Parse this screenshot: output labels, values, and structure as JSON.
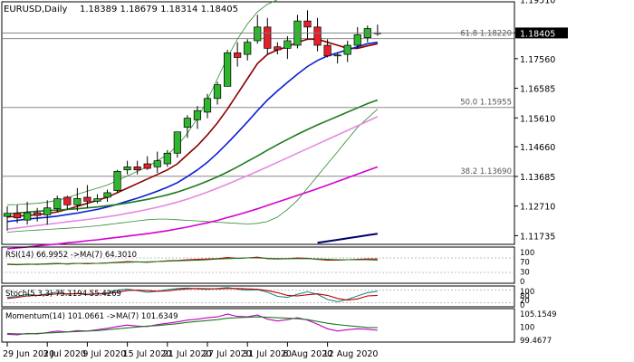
{
  "header": {
    "symbol": "EURUSD,Daily",
    "ohlc": "1.18389 1.18679 1.18314 1.18405"
  },
  "chart_data": {
    "type": "candlestick",
    "symbol": "EURUSD",
    "timeframe": "Daily",
    "current_price": 1.18405,
    "ylim": [
      1.1145,
      1.1943
    ],
    "price_ticks": [
      "1.19510",
      "1.18405",
      "1.17560",
      "1.16585",
      "1.15610",
      "1.14660",
      "1.13685",
      "1.12710",
      "1.11735"
    ],
    "date_labels": [
      "29 Jun 2020",
      "3 Jul 2020",
      "9 Jul 2020",
      "15 Jul 2020",
      "21 Jul 2020",
      "27 Jul 2020",
      "31 Jul 2020",
      "6 Aug 2020",
      "12 Aug 2020"
    ],
    "date_label_index": [
      0,
      4,
      8,
      12,
      16,
      20,
      24,
      28,
      32
    ],
    "candles": [
      {
        "o": 1.1237,
        "h": 1.127,
        "l": 1.119,
        "c": 1.1247
      },
      {
        "o": 1.1247,
        "h": 1.1275,
        "l": 1.1215,
        "c": 1.1232
      },
      {
        "o": 1.1225,
        "h": 1.1285,
        "l": 1.121,
        "c": 1.1249
      },
      {
        "o": 1.1249,
        "h": 1.1265,
        "l": 1.122,
        "c": 1.124
      },
      {
        "o": 1.1242,
        "h": 1.129,
        "l": 1.121,
        "c": 1.1265
      },
      {
        "o": 1.1262,
        "h": 1.1305,
        "l": 1.125,
        "c": 1.1295
      },
      {
        "o": 1.13,
        "h": 1.1305,
        "l": 1.126,
        "c": 1.1275
      },
      {
        "o": 1.1275,
        "h": 1.133,
        "l": 1.1255,
        "c": 1.1296
      },
      {
        "o": 1.13,
        "h": 1.134,
        "l": 1.1265,
        "c": 1.1287
      },
      {
        "o": 1.1287,
        "h": 1.131,
        "l": 1.128,
        "c": 1.1295
      },
      {
        "o": 1.13,
        "h": 1.1325,
        "l": 1.1285,
        "c": 1.1315
      },
      {
        "o": 1.1322,
        "h": 1.139,
        "l": 1.1315,
        "c": 1.1385
      },
      {
        "o": 1.139,
        "h": 1.142,
        "l": 1.1375,
        "c": 1.14
      },
      {
        "o": 1.14,
        "h": 1.142,
        "l": 1.1375,
        "c": 1.139
      },
      {
        "o": 1.141,
        "h": 1.1435,
        "l": 1.139,
        "c": 1.1395
      },
      {
        "o": 1.14,
        "h": 1.145,
        "l": 1.138,
        "c": 1.142
      },
      {
        "o": 1.141,
        "h": 1.1455,
        "l": 1.14,
        "c": 1.1445
      },
      {
        "o": 1.1445,
        "h": 1.151,
        "l": 1.143,
        "c": 1.1515
      },
      {
        "o": 1.153,
        "h": 1.157,
        "l": 1.1495,
        "c": 1.156
      },
      {
        "o": 1.1555,
        "h": 1.16,
        "l": 1.1525,
        "c": 1.1585
      },
      {
        "o": 1.158,
        "h": 1.164,
        "l": 1.156,
        "c": 1.1625
      },
      {
        "o": 1.1625,
        "h": 1.168,
        "l": 1.1605,
        "c": 1.167
      },
      {
        "o": 1.1665,
        "h": 1.1785,
        "l": 1.1665,
        "c": 1.1775
      },
      {
        "o": 1.1775,
        "h": 1.181,
        "l": 1.173,
        "c": 1.176
      },
      {
        "o": 1.177,
        "h": 1.182,
        "l": 1.175,
        "c": 1.181
      },
      {
        "o": 1.1815,
        "h": 1.19,
        "l": 1.1805,
        "c": 1.186
      },
      {
        "o": 1.186,
        "h": 1.189,
        "l": 1.177,
        "c": 1.179
      },
      {
        "o": 1.1795,
        "h": 1.181,
        "l": 1.177,
        "c": 1.1785
      },
      {
        "o": 1.179,
        "h": 1.183,
        "l": 1.1755,
        "c": 1.1815
      },
      {
        "o": 1.18,
        "h": 1.19,
        "l": 1.179,
        "c": 1.188
      },
      {
        "o": 1.188,
        "h": 1.1915,
        "l": 1.182,
        "c": 1.186
      },
      {
        "o": 1.186,
        "h": 1.189,
        "l": 1.178,
        "c": 1.18
      },
      {
        "o": 1.18,
        "h": 1.182,
        "l": 1.176,
        "c": 1.1765
      },
      {
        "o": 1.1765,
        "h": 1.1775,
        "l": 1.174,
        "c": 1.1768
      },
      {
        "o": 1.177,
        "h": 1.1815,
        "l": 1.1745,
        "c": 1.18
      },
      {
        "o": 1.18,
        "h": 1.186,
        "l": 1.179,
        "c": 1.1835
      },
      {
        "o": 1.1825,
        "h": 1.1865,
        "l": 1.181,
        "c": 1.1855
      },
      {
        "o": 1.1839,
        "h": 1.1868,
        "l": 1.1831,
        "c": 1.1841
      }
    ],
    "moving_averages": [
      {
        "name": "red",
        "color": "#8b0000",
        "values": [
          1.1235,
          1.1238,
          1.124,
          1.1243,
          1.1246,
          1.1252,
          1.126,
          1.127,
          1.128,
          1.129,
          1.13,
          1.1315,
          1.133,
          1.1345,
          1.136,
          1.1375,
          1.139,
          1.141,
          1.144,
          1.147,
          1.1505,
          1.1545,
          1.159,
          1.164,
          1.169,
          1.174,
          1.177,
          1.1785,
          1.1795,
          1.181,
          1.182,
          1.182,
          1.181,
          1.18,
          1.179,
          1.179,
          1.1798,
          1.1805
        ]
      },
      {
        "name": "blue",
        "color": "#0b1fd0",
        "values": [
          1.122,
          1.1224,
          1.1228,
          1.1231,
          1.1234,
          1.1238,
          1.1243,
          1.1248,
          1.1254,
          1.126,
          1.1268,
          1.1277,
          1.1287,
          1.1297,
          1.1308,
          1.132,
          1.1333,
          1.1348,
          1.1368,
          1.139,
          1.1415,
          1.1445,
          1.1478,
          1.1512,
          1.1548,
          1.1585,
          1.162,
          1.165,
          1.1678,
          1.1705,
          1.173,
          1.175,
          1.1765,
          1.1775,
          1.1785,
          1.1795,
          1.1805,
          1.181
        ]
      },
      {
        "name": "green",
        "color": "#1e7a1e",
        "values": [
          1.1245,
          1.1248,
          1.1251,
          1.1254,
          1.1256,
          1.1258,
          1.126,
          1.1262,
          1.1265,
          1.1268,
          1.1272,
          1.1276,
          1.1281,
          1.1287,
          1.1293,
          1.13,
          1.1308,
          1.1317,
          1.1328,
          1.134,
          1.1353,
          1.1367,
          1.1383,
          1.14,
          1.1418,
          1.1436,
          1.1455,
          1.1473,
          1.149,
          1.1507,
          1.1523,
          1.1538,
          1.1552,
          1.1566,
          1.158,
          1.1594,
          1.1608,
          1.162
        ]
      },
      {
        "name": "violet",
        "color": "#e58ae0",
        "values": [
          1.1195,
          1.1199,
          1.1203,
          1.1207,
          1.1211,
          1.1215,
          1.1219,
          1.1223,
          1.1227,
          1.1231,
          1.1236,
          1.1241,
          1.1247,
          1.1253,
          1.126,
          1.1267,
          1.1275,
          1.1284,
          1.1294,
          1.1305,
          1.1317,
          1.133,
          1.1343,
          1.1357,
          1.1371,
          1.1385,
          1.14,
          1.1415,
          1.143,
          1.1445,
          1.146,
          1.1475,
          1.149,
          1.1505,
          1.152,
          1.1535,
          1.155,
          1.1565
        ]
      },
      {
        "name": "magenta",
        "color": "#d400d4",
        "values": [
          1.113,
          1.1133,
          1.1136,
          1.114,
          1.1143,
          1.1146,
          1.115,
          1.1153,
          1.1157,
          1.116,
          1.1164,
          1.1168,
          1.1172,
          1.1176,
          1.118,
          1.1185,
          1.119,
          1.1196,
          1.1202,
          1.1209,
          1.1216,
          1.1224,
          1.1233,
          1.1242,
          1.1252,
          1.1262,
          1.1273,
          1.1284,
          1.1295,
          1.1306,
          1.1317,
          1.1328,
          1.134,
          1.1352,
          1.1364,
          1.1376,
          1.1388,
          1.14
        ]
      },
      {
        "name": "navy",
        "color": "#00006b",
        "values": [
          null,
          null,
          null,
          null,
          null,
          null,
          null,
          null,
          null,
          null,
          null,
          null,
          null,
          null,
          null,
          null,
          null,
          null,
          null,
          null,
          null,
          null,
          null,
          null,
          null,
          null,
          null,
          null,
          null,
          null,
          null,
          1.115,
          1.1155,
          1.116,
          1.1165,
          1.117,
          1.1175,
          1.118
        ]
      }
    ],
    "bollinger_upper": [
      1.1275,
      1.1276,
      1.1278,
      1.128,
      1.1284,
      1.129,
      1.1298,
      1.131,
      1.132,
      1.133,
      1.134,
      1.1355,
      1.137,
      1.1385,
      1.14,
      1.142,
      1.144,
      1.147,
      1.151,
      1.156,
      1.162,
      1.169,
      1.176,
      1.182,
      1.187,
      1.191,
      1.1935,
      1.195,
      1.196,
      1.197,
      1.1978,
      1.1985,
      1.199,
      1.1995,
      1.1995,
      1.1993,
      1.199,
      1.1985
    ],
    "bollinger_lower": [
      1.1185,
      1.1188,
      1.119,
      1.1192,
      1.1194,
      1.1196,
      1.1198,
      1.12,
      1.1203,
      1.1206,
      1.121,
      1.1214,
      1.1218,
      1.1222,
      1.1226,
      1.1228,
      1.1228,
      1.1226,
      1.1224,
      1.1222,
      1.122,
      1.1218,
      1.1216,
      1.1214,
      1.1212,
      1.1214,
      1.122,
      1.1235,
      1.126,
      1.129,
      1.133,
      1.137,
      1.141,
      1.145,
      1.149,
      1.153,
      1.156,
      1.159
    ],
    "fib_levels": [
      {
        "label": "61.8 1.18220",
        "value": 1.1822
      },
      {
        "label": "50.0 1.15955",
        "value": 1.15955
      },
      {
        "label": "38.2 1.13690",
        "value": 1.1369
      }
    ],
    "indicators": [
      {
        "name": "rsi",
        "label": "RSI(14) 66.9952 ->MA(7) 64.3010",
        "ylim": [
          0,
          100
        ],
        "levels": [
          70,
          30
        ],
        "tick_labels": [
          "100",
          "70",
          "30",
          "0"
        ],
        "series": [
          {
            "color": "#c00000",
            "values": [
              52,
              51,
              53,
              52,
              54,
              55,
              53,
              55,
              54,
              55,
              56,
              58,
              60,
              59,
              58,
              60,
              62,
              63,
              65,
              66,
              67,
              68,
              71,
              69,
              70,
              72,
              68,
              67,
              68,
              70,
              69,
              66,
              64,
              64,
              65,
              66,
              67,
              67
            ]
          },
          {
            "color": "#1e7a1e",
            "values": [
              53,
              52,
              52,
              53,
              53,
              54,
              54,
              55,
              55,
              55,
              56,
              57,
              58,
              59,
              59,
              60,
              61,
              62,
              63,
              64,
              65,
              67,
              68,
              69,
              70,
              70,
              69,
              68,
              68,
              68,
              68,
              67,
              66,
              65,
              65,
              65,
              65,
              64
            ]
          }
        ]
      },
      {
        "name": "stoch",
        "label": "Stoch(5,3,3) 75.1194 55.4269",
        "ylim": [
          0,
          100
        ],
        "levels": [
          80,
          20
        ],
        "tick_labels": [
          "100",
          "80",
          "20",
          "0"
        ],
        "series": [
          {
            "color": "#1a8a8a",
            "values": [
              45,
              50,
              60,
              55,
              62,
              70,
              60,
              65,
              58,
              62,
              68,
              80,
              85,
              78,
              70,
              75,
              82,
              88,
              90,
              86,
              84,
              88,
              92,
              85,
              80,
              82,
              70,
              50,
              45,
              60,
              72,
              60,
              35,
              25,
              35,
              52,
              68,
              75
            ]
          },
          {
            "color": "#c00000",
            "values": [
              40,
              45,
              52,
              55,
              58,
              62,
              62,
              63,
              61,
              62,
              63,
              70,
              78,
              80,
              78,
              75,
              76,
              82,
              86,
              88,
              87,
              86,
              88,
              88,
              86,
              84,
              78,
              68,
              55,
              52,
              58,
              62,
              55,
              40,
              32,
              38,
              52,
              55
            ]
          }
        ]
      },
      {
        "name": "momentum",
        "label": "Momentum(14) 101.0661 ->MA(7) 101.6349",
        "ylim": [
          98.5,
          105.8
        ],
        "tick_labels": [
          "105.1549",
          "100",
          "99.4677"
        ],
        "series": [
          {
            "color": "#c000c0",
            "values": [
              100.2,
              100.1,
              100.4,
              100.3,
              100.6,
              100.9,
              100.7,
              101.0,
              100.9,
              101.2,
              101.5,
              101.9,
              102.2,
              102.0,
              101.9,
              102.3,
              102.6,
              102.9,
              103.3,
              103.5,
              103.8,
              104.0,
              104.6,
              104.1,
              104.0,
              104.4,
              103.5,
              103.1,
              103.4,
              103.8,
              103.3,
              102.4,
              101.4,
              100.9,
              101.2,
              101.4,
              101.3,
              101.07
            ]
          },
          {
            "color": "#1e7a1e",
            "values": [
              100.4,
              100.3,
              100.3,
              100.4,
              100.5,
              100.6,
              100.7,
              100.8,
              100.9,
              101.0,
              101.2,
              101.4,
              101.6,
              101.8,
              102.0,
              102.1,
              102.3,
              102.5,
              102.8,
              103.0,
              103.2,
              103.4,
              103.7,
              103.8,
              103.9,
              104.0,
              103.9,
              103.8,
              103.7,
              103.6,
              103.4,
              103.0,
              102.6,
              102.3,
              102.1,
              101.9,
              101.7,
              101.63
            ]
          }
        ]
      }
    ]
  }
}
